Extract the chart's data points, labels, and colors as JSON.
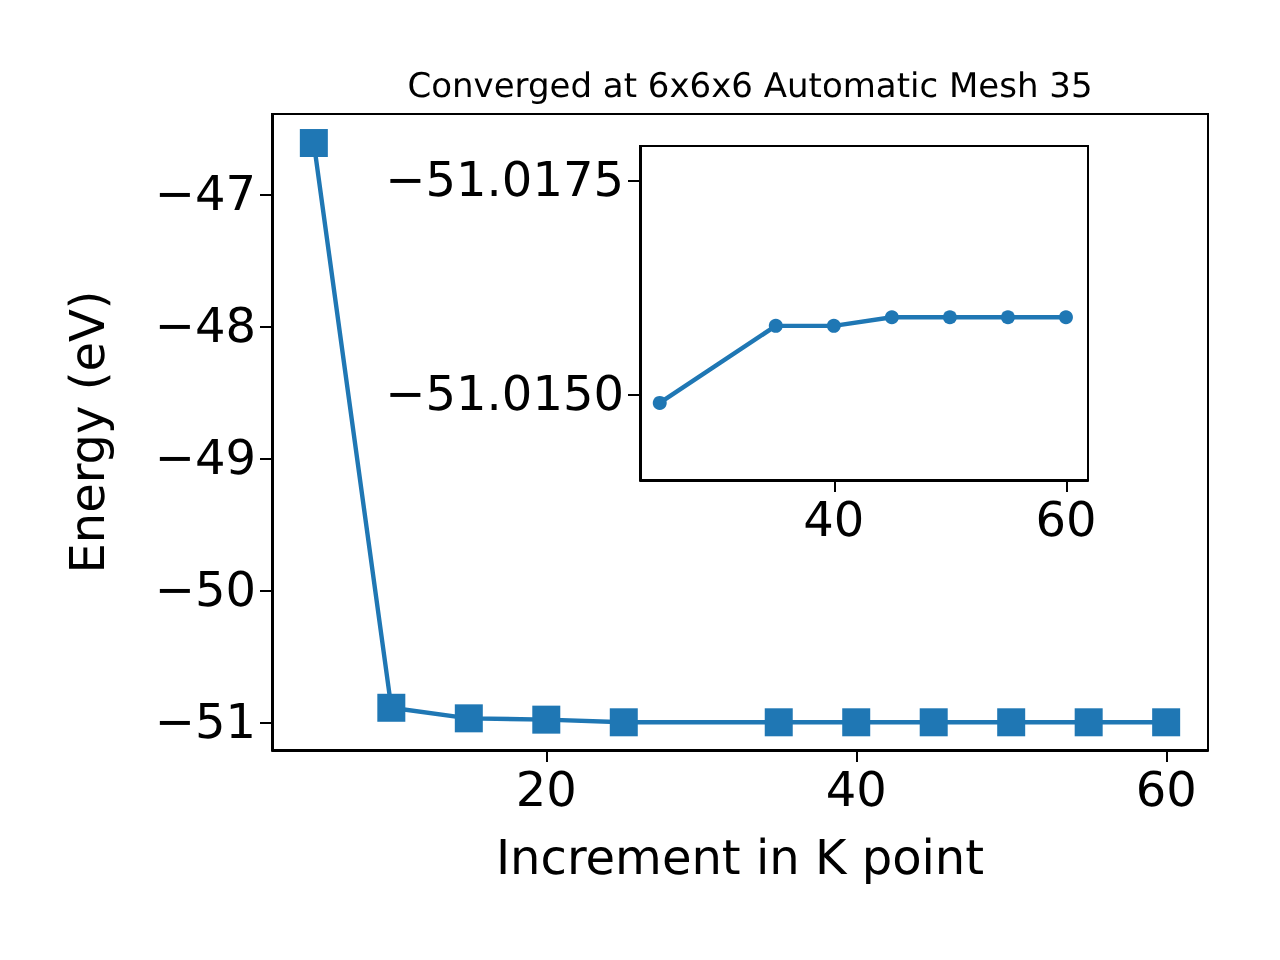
{
  "chart_data": [
    {
      "type": "line",
      "title": "Converged at 6x6x6 Automatic Mesh 35",
      "xlabel": "Increment in K point",
      "ylabel": "Energy (eV)",
      "x": [
        5,
        10,
        15,
        20,
        25,
        35,
        40,
        45,
        50,
        55,
        60
      ],
      "values": [
        -46.61,
        -50.89,
        -50.97,
        -50.98,
        -51.0,
        -51.0,
        -51.0,
        -51.0,
        -51.0,
        -51.0,
        -51.0
      ],
      "color": "#1f77b4",
      "marker": "square",
      "xlim": [
        2.3,
        62.7
      ],
      "ylim": [
        -51.21,
        -46.39
      ],
      "xticks": [
        20,
        40,
        60
      ],
      "yticks": [
        -51,
        -50,
        -49,
        -48,
        -47
      ]
    },
    {
      "type": "line",
      "x": [
        25,
        35,
        40,
        45,
        50,
        55,
        60
      ],
      "values": [
        -51.0149,
        -51.0158,
        -51.0158,
        -51.0159,
        -51.0159,
        -51.0159,
        -51.0159
      ],
      "color": "#1f77b4",
      "marker": "circle",
      "xlim": [
        23.3,
        61.9
      ],
      "ylim": [
        -51.014,
        -51.0179
      ],
      "xticks": [
        40,
        60
      ],
      "yticks": [
        {
          "value": -51.0175,
          "label": "−51.0175"
        },
        {
          "value": -51.015,
          "label": "−51.0150"
        }
      ]
    }
  ]
}
